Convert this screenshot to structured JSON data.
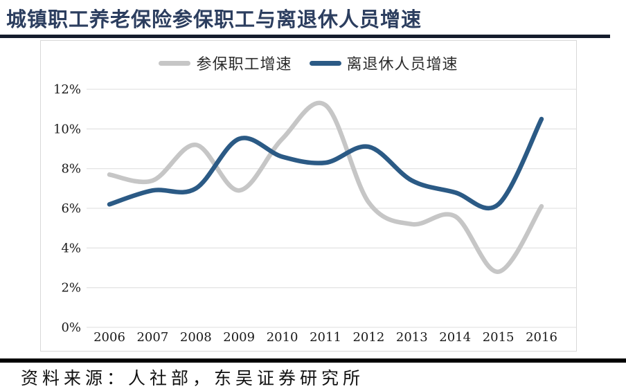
{
  "title": "城镇职工养老保险参保职工与离退休人员增速",
  "source_note": "资料来源：人社部，东吴证券研究所",
  "colors": {
    "title": "#2c3e5f",
    "title_underline": "#151c2c",
    "frame_border": "#d8d8d8",
    "gridline": "#dcdcdc",
    "axis_text": "#1a1a1a",
    "series_insured": "#c6c6c6",
    "series_retirees": "#2b5a85",
    "bottom_divider": "#000000"
  },
  "legend": [
    {
      "label": "参保职工增速",
      "color": "#c6c6c6"
    },
    {
      "label": "离退休人员增速",
      "color": "#2b5a85"
    }
  ],
  "chart_data": {
    "type": "line",
    "smooth": true,
    "grid": true,
    "legend_position": "top-center",
    "title": "城镇职工养老保险参保职工与离退休人员增速",
    "xlabel": "",
    "ylabel": "",
    "x": [
      2006,
      2007,
      2008,
      2009,
      2010,
      2011,
      2012,
      2013,
      2014,
      2015,
      2016
    ],
    "series": [
      {
        "name": "参保职工增速",
        "color": "#c6c6c6",
        "values": [
          7.7,
          7.4,
          9.2,
          6.9,
          9.5,
          11.2,
          6.3,
          5.2,
          5.6,
          2.8,
          6.1
        ]
      },
      {
        "name": "离退休人员增速",
        "color": "#2b5a85",
        "values": [
          6.2,
          6.9,
          7.0,
          9.5,
          8.6,
          8.3,
          9.1,
          7.4,
          6.8,
          6.2,
          10.5
        ]
      }
    ],
    "ylim": [
      0,
      12
    ],
    "y_tick_values": [
      0,
      2,
      4,
      6,
      8,
      10,
      12
    ],
    "y_tick_labels": [
      "0%",
      "2%",
      "4%",
      "6%",
      "8%",
      "10%",
      "12%"
    ]
  }
}
